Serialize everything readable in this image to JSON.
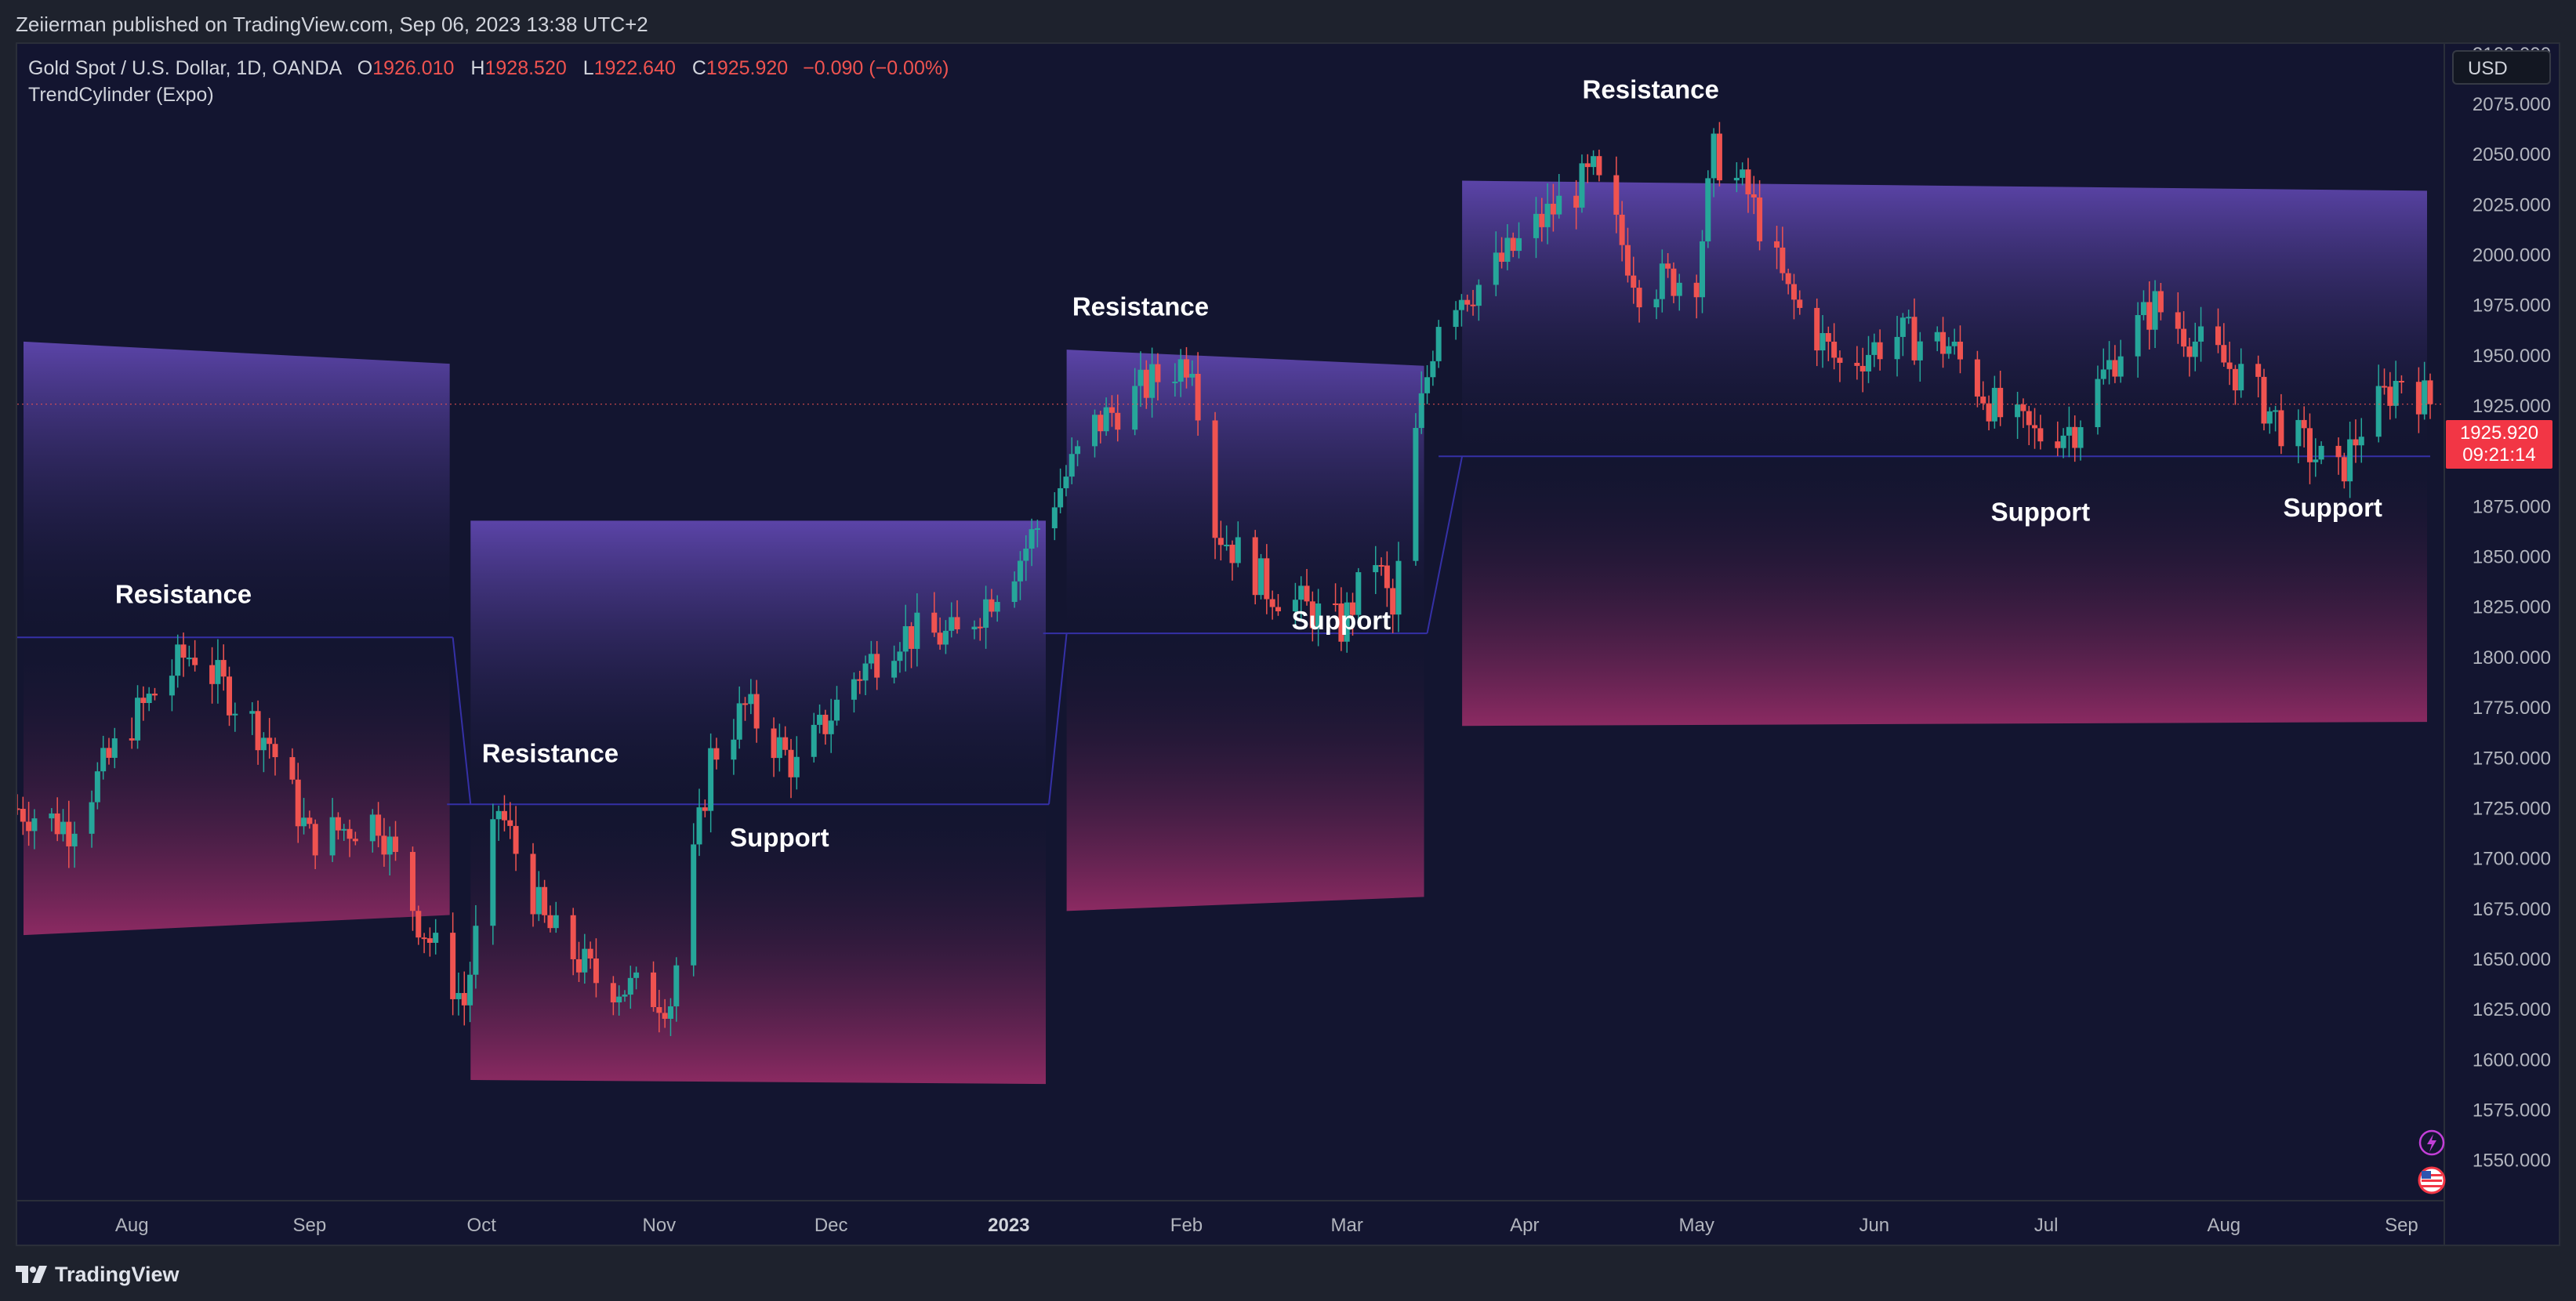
{
  "header": {
    "published": "Zeiierman published on TradingView.com, Sep 06, 2023 13:38 UTC+2"
  },
  "legend": {
    "symbol": "Gold Spot / U.S. Dollar, 1D, OANDA",
    "o_label": "O",
    "o_value": "1926.010",
    "h_label": "H",
    "h_value": "1928.520",
    "l_label": "L",
    "l_value": "1922.640",
    "c_label": "C",
    "c_value": "1925.920",
    "change": "−0.090 (−0.00%)",
    "indicator": "TrendCylinder (Expo)"
  },
  "currency_button": "USD",
  "price_badge": {
    "price": "1925.920",
    "countdown": "09:21:14"
  },
  "footer": {
    "brand": "TradingView"
  },
  "colors": {
    "background": "#131530",
    "up": "#26a69a",
    "down": "#ef5350",
    "upper_band": "#5b44a8",
    "lower_band": "#8c2a62",
    "midline": "#3530a6"
  },
  "icons": [
    "lightning-icon",
    "us-flag-icon",
    "tradingview-logo-icon"
  ],
  "chart_data": {
    "type": "candlestick",
    "title": "Gold Spot / U.S. Dollar, 1D, OANDA",
    "ylim": [
      1530,
      2105
    ],
    "y_ticks": [
      "2100.000",
      "2075.000",
      "2050.000",
      "2025.000",
      "2000.000",
      "1975.000",
      "1950.000",
      "1925.000",
      "1900.000",
      "1875.000",
      "1850.000",
      "1825.000",
      "1800.000",
      "1775.000",
      "1750.000",
      "1725.000",
      "1700.000",
      "1675.000",
      "1650.000",
      "1625.000",
      "1600.000",
      "1575.000",
      "1550.000"
    ],
    "x_ticks": [
      {
        "label": "Aug",
        "date": "2022-08-01"
      },
      {
        "label": "Sep",
        "date": "2022-09-01"
      },
      {
        "label": "Oct",
        "date": "2022-10-01"
      },
      {
        "label": "Nov",
        "date": "2022-11-01"
      },
      {
        "label": "Dec",
        "date": "2022-12-01"
      },
      {
        "label": "2023",
        "date": "2023-01-01",
        "bold": true
      },
      {
        "label": "Feb",
        "date": "2023-02-01"
      },
      {
        "label": "Mar",
        "date": "2023-03-01"
      },
      {
        "label": "Apr",
        "date": "2023-04-01"
      },
      {
        "label": "May",
        "date": "2023-05-01"
      },
      {
        "label": "Jun",
        "date": "2023-06-01"
      },
      {
        "label": "Jul",
        "date": "2023-07-01"
      },
      {
        "label": "Aug",
        "date": "2023-08-01"
      },
      {
        "label": "Sep",
        "date": "2023-09-01"
      }
    ],
    "x_range": [
      "2022-07-12",
      "2023-09-06"
    ],
    "last_price": 1925.92,
    "price_path": [
      [
        "2022-07-12",
        1725
      ],
      [
        "2022-07-21",
        1716
      ],
      [
        "2022-08-01",
        1768
      ],
      [
        "2022-08-10",
        1800
      ],
      [
        "2022-08-12",
        1802
      ],
      [
        "2022-08-25",
        1758
      ],
      [
        "2022-09-01",
        1710
      ],
      [
        "2022-09-13",
        1720
      ],
      [
        "2022-09-20",
        1670
      ],
      [
        "2022-09-28",
        1628
      ],
      [
        "2022-10-04",
        1725
      ],
      [
        "2022-10-12",
        1668
      ],
      [
        "2022-10-21",
        1640
      ],
      [
        "2022-11-03",
        1630
      ],
      [
        "2022-11-10",
        1750
      ],
      [
        "2022-11-16",
        1775
      ],
      [
        "2022-11-25",
        1745
      ],
      [
        "2022-12-05",
        1790
      ],
      [
        "2022-12-13",
        1812
      ],
      [
        "2022-12-23",
        1810
      ],
      [
        "2023-01-03",
        1850
      ],
      [
        "2023-01-16",
        1915
      ],
      [
        "2023-01-25",
        1935
      ],
      [
        "2023-02-02",
        1950
      ],
      [
        "2023-02-06",
        1865
      ],
      [
        "2023-02-15",
        1835
      ],
      [
        "2023-02-28",
        1815
      ],
      [
        "2023-03-06",
        1850
      ],
      [
        "2023-03-09",
        1820
      ],
      [
        "2023-03-13",
        1910
      ],
      [
        "2023-03-17",
        1970
      ],
      [
        "2023-03-20",
        1980
      ],
      [
        "2023-03-24",
        1985
      ],
      [
        "2023-04-05",
        2020
      ],
      [
        "2023-04-13",
        2040
      ],
      [
        "2023-04-21",
        1985
      ],
      [
        "2023-05-01",
        1990
      ],
      [
        "2023-05-04",
        2050
      ],
      [
        "2023-05-10",
        2030
      ],
      [
        "2023-05-17",
        1980
      ],
      [
        "2023-05-26",
        1945
      ],
      [
        "2023-06-05",
        1960
      ],
      [
        "2023-06-14",
        1955
      ],
      [
        "2023-06-23",
        1920
      ],
      [
        "2023-06-29",
        1910
      ],
      [
        "2023-07-06",
        1915
      ],
      [
        "2023-07-14",
        1955
      ],
      [
        "2023-07-20",
        1975
      ],
      [
        "2023-07-28",
        1955
      ],
      [
        "2023-08-04",
        1940
      ],
      [
        "2023-08-11",
        1915
      ],
      [
        "2023-08-21",
        1890
      ],
      [
        "2023-08-25",
        1915
      ],
      [
        "2023-09-01",
        1940
      ],
      [
        "2023-09-06",
        1926
      ]
    ],
    "cylinders": [
      {
        "start": "2022-07-12",
        "end": "2022-09-26",
        "upper": [
          1957,
          1946
        ],
        "mid": 1810,
        "lower": [
          1662,
          1672
        ]
      },
      {
        "start": "2022-09-28",
        "end": "2023-01-08",
        "upper": [
          1868,
          1868
        ],
        "mid": 1727,
        "lower": [
          1590,
          1588
        ]
      },
      {
        "start": "2023-01-10",
        "end": "2023-03-15",
        "upper": [
          1953,
          1945
        ],
        "mid": 1812,
        "lower": [
          1674,
          1681
        ]
      },
      {
        "start": "2023-03-20",
        "end": "2023-09-06",
        "upper": [
          2037,
          2032
        ],
        "mid": 1900,
        "lower": [
          1766,
          1768
        ]
      }
    ],
    "annotations": [
      {
        "text": "Resistance",
        "date": "2022-08-10",
        "price": 1827
      },
      {
        "text": "Resistance",
        "date": "2022-10-13",
        "price": 1748
      },
      {
        "text": "Support",
        "date": "2022-11-22",
        "price": 1706
      },
      {
        "text": "Resistance",
        "date": "2023-01-24",
        "price": 1970
      },
      {
        "text": "Support",
        "date": "2023-02-28",
        "price": 1814
      },
      {
        "text": "Resistance",
        "date": "2023-04-23",
        "price": 2078
      },
      {
        "text": "Support",
        "date": "2023-06-30",
        "price": 1868
      },
      {
        "text": "Support",
        "date": "2023-08-20",
        "price": 1870
      }
    ]
  }
}
